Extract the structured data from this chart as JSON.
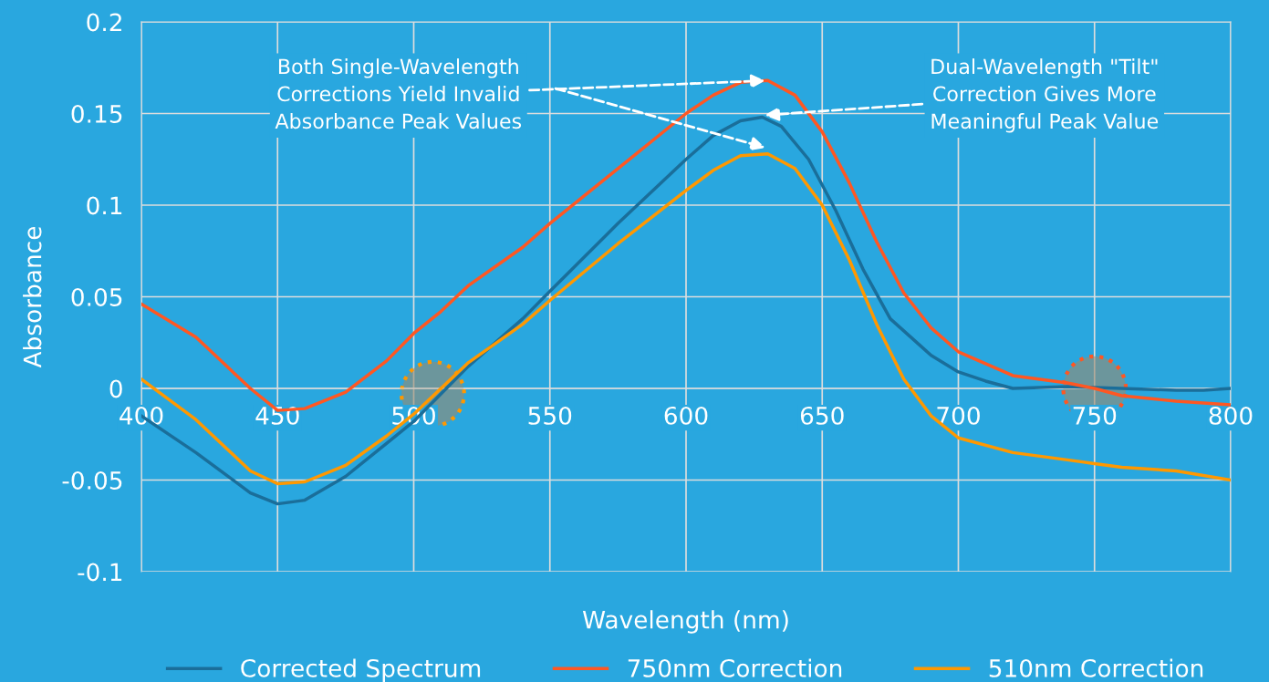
{
  "chart_data": {
    "type": "line",
    "xlabel": "Wavelength (nm)",
    "ylabel": "Absorbance",
    "x": [
      400,
      420,
      440,
      450,
      460,
      475,
      490,
      500,
      510,
      520,
      540,
      550,
      575,
      600,
      610,
      620,
      628,
      635,
      645,
      655,
      665,
      675,
      690,
      700,
      710,
      720,
      740,
      760,
      780,
      790,
      800
    ],
    "series": [
      {
        "name": "Corrected Spectrum",
        "color": "#1a6e9a",
        "values": [
          -0.015,
          -0.035,
          -0.057,
          -0.063,
          -0.061,
          -0.048,
          -0.03,
          -0.018,
          -0.003,
          0.012,
          0.038,
          0.053,
          0.09,
          0.125,
          0.138,
          0.146,
          0.148,
          0.143,
          0.125,
          0.097,
          0.065,
          0.038,
          0.018,
          0.009,
          0.004,
          0.0,
          0.001,
          0.0,
          -0.001,
          -0.001,
          0.0
        ]
      },
      {
        "name": "750nm Correction",
        "color": "#ff5722",
        "x": [
          400,
          420,
          440,
          450,
          460,
          475,
          490,
          500,
          510,
          520,
          540,
          550,
          575,
          600,
          610,
          620,
          630,
          640,
          650,
          660,
          670,
          680,
          690,
          700,
          720,
          740,
          750,
          760,
          780,
          800
        ],
        "values": [
          0.046,
          0.028,
          0.0,
          -0.012,
          -0.011,
          -0.002,
          0.015,
          0.03,
          0.042,
          0.056,
          0.077,
          0.09,
          0.12,
          0.15,
          0.16,
          0.167,
          0.168,
          0.16,
          0.14,
          0.112,
          0.08,
          0.052,
          0.033,
          0.02,
          0.007,
          0.003,
          0.0,
          -0.004,
          -0.007,
          -0.009
        ]
      },
      {
        "name": "510nm Correction",
        "color": "#ff9800",
        "x": [
          400,
          420,
          440,
          450,
          460,
          475,
          490,
          500,
          510,
          520,
          540,
          550,
          575,
          600,
          610,
          620,
          630,
          640,
          650,
          660,
          670,
          680,
          690,
          700,
          720,
          740,
          750,
          760,
          780,
          800
        ],
        "values": [
          0.005,
          -0.017,
          -0.045,
          -0.052,
          -0.051,
          -0.042,
          -0.026,
          -0.014,
          0.0,
          0.014,
          0.035,
          0.048,
          0.079,
          0.108,
          0.119,
          0.127,
          0.128,
          0.12,
          0.1,
          0.07,
          0.035,
          0.005,
          -0.015,
          -0.027,
          -0.035,
          -0.039,
          -0.041,
          -0.043,
          -0.045,
          -0.05
        ]
      }
    ],
    "xlim": [
      400,
      800
    ],
    "xticks": [
      400,
      450,
      500,
      550,
      600,
      650,
      700,
      750,
      800
    ],
    "ylim": [
      -0.1,
      0.2
    ],
    "yticks": [
      -0.1,
      -0.05,
      0,
      0.05,
      0.1,
      0.15,
      0.2
    ],
    "annotations": [
      {
        "text": "Both Single-Wavelength\nCorrections Yield Invalid\nAbsorbance Peak Values",
        "x": 630,
        "y": 0.168
      },
      {
        "text": "Dual-Wavelength \"Tilt\"\nCorrection Gives More\nMeaningful Peak Value",
        "x": 628,
        "y": 0.149
      }
    ],
    "grid": true,
    "legend": "bottom",
    "marker": "none",
    "line_style": "solid"
  }
}
